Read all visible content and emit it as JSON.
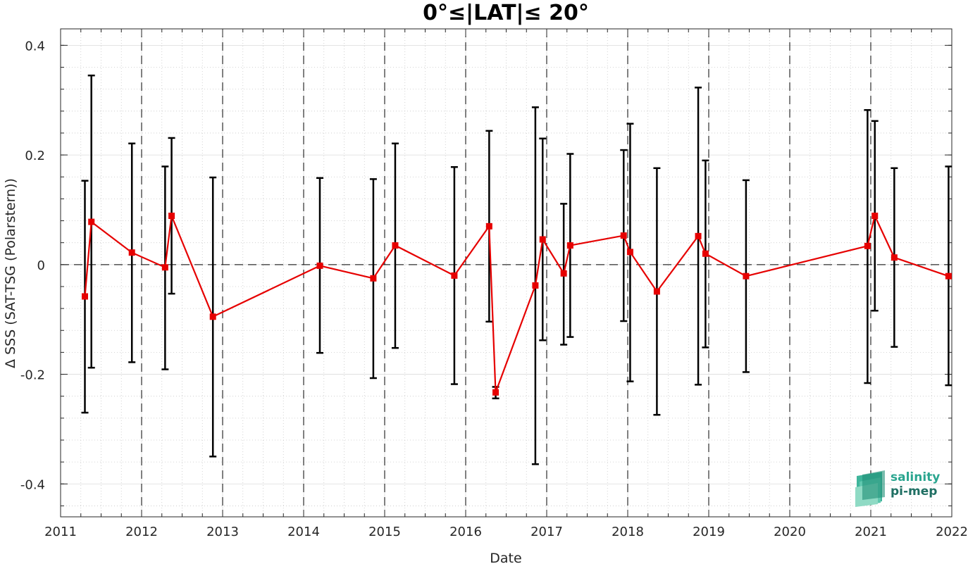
{
  "chart_data": {
    "type": "line",
    "title": "0°≤|LAT|≤ 20°",
    "xlabel": "Date",
    "ylabel": "Δ SSS (SAT-TSG (Polarstern))",
    "xlim": [
      2011,
      2022
    ],
    "ylim": [
      -0.46,
      0.43
    ],
    "xticks": [
      "2011",
      "2012",
      "2013",
      "2014",
      "2015",
      "2016",
      "2017",
      "2018",
      "2019",
      "2020",
      "2021",
      "2022"
    ],
    "yticks": [
      "0.4",
      "0.2",
      "0",
      "-0.2",
      "-0.4"
    ],
    "ytick_values": [
      0.4,
      0.2,
      0,
      -0.2,
      -0.4
    ],
    "grid": true,
    "zero_line": true,
    "year_boundaries": [
      2012,
      2013,
      2014,
      2015,
      2016,
      2017,
      2018,
      2019,
      2020,
      2021
    ],
    "series": [
      {
        "color": "#e60000",
        "errorbar_color": "#000000",
        "points": [
          {
            "x": 2011.3,
            "y": -0.058,
            "low": -0.27,
            "high": 0.153
          },
          {
            "x": 2011.38,
            "y": 0.078,
            "low": -0.188,
            "high": 0.345
          },
          {
            "x": 2011.88,
            "y": 0.022,
            "low": -0.178,
            "high": 0.221
          },
          {
            "x": 2012.29,
            "y": -0.005,
            "low": -0.191,
            "high": 0.179
          },
          {
            "x": 2012.37,
            "y": 0.089,
            "low": -0.053,
            "high": 0.231
          },
          {
            "x": 2012.88,
            "y": -0.095,
            "low": -0.35,
            "high": 0.159
          },
          {
            "x": 2014.2,
            "y": -0.002,
            "low": -0.161,
            "high": 0.158
          },
          {
            "x": 2014.86,
            "y": -0.025,
            "low": -0.207,
            "high": 0.156
          },
          {
            "x": 2015.13,
            "y": 0.035,
            "low": -0.152,
            "high": 0.221
          },
          {
            "x": 2015.86,
            "y": -0.02,
            "low": -0.218,
            "high": 0.178
          },
          {
            "x": 2016.29,
            "y": 0.07,
            "low": -0.104,
            "high": 0.244
          },
          {
            "x": 2016.37,
            "y": -0.233,
            "low": -0.244,
            "high": -0.223
          },
          {
            "x": 2016.86,
            "y": -0.038,
            "low": -0.364,
            "high": 0.287
          },
          {
            "x": 2016.95,
            "y": 0.046,
            "low": -0.138,
            "high": 0.23
          },
          {
            "x": 2017.21,
            "y": -0.016,
            "low": -0.146,
            "high": 0.111
          },
          {
            "x": 2017.29,
            "y": 0.035,
            "low": -0.132,
            "high": 0.202
          },
          {
            "x": 2017.95,
            "y": 0.053,
            "low": -0.103,
            "high": 0.209
          },
          {
            "x": 2018.03,
            "y": 0.023,
            "low": -0.213,
            "high": 0.257
          },
          {
            "x": 2018.36,
            "y": -0.049,
            "low": -0.274,
            "high": 0.176
          },
          {
            "x": 2018.87,
            "y": 0.052,
            "low": -0.219,
            "high": 0.323
          },
          {
            "x": 2018.96,
            "y": 0.02,
            "low": -0.151,
            "high": 0.19
          },
          {
            "x": 2019.46,
            "y": -0.021,
            "low": -0.196,
            "high": 0.154
          },
          {
            "x": 2020.96,
            "y": 0.034,
            "low": -0.216,
            "high": 0.282
          },
          {
            "x": 2021.05,
            "y": 0.089,
            "low": -0.084,
            "high": 0.262
          },
          {
            "x": 2021.29,
            "y": 0.013,
            "low": -0.15,
            "high": 0.176
          },
          {
            "x": 2021.96,
            "y": -0.021,
            "low": -0.22,
            "high": 0.179
          }
        ]
      }
    ]
  },
  "logo": {
    "line1": "salinity",
    "line2": "pi-mep"
  }
}
